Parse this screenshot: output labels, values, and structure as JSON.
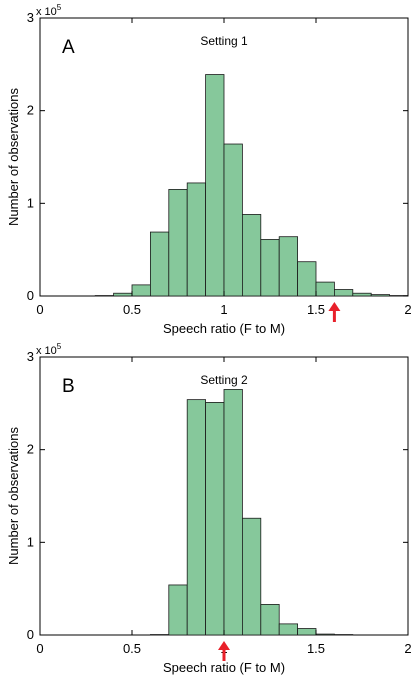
{
  "colors": {
    "bar_fill": "#86c89b",
    "bar_stroke": "#1a1a1a",
    "arrow": "#e8202a",
    "axis": "#000000"
  },
  "chart_data": [
    {
      "type": "bar",
      "panel_label": "A",
      "title": "Setting 1",
      "xlabel": "Speech ratio (F to M)",
      "ylabel": "Number of observations",
      "y_multiplier": "x 10",
      "y_multiplier_exp": "5",
      "xlim": [
        0,
        2
      ],
      "ylim": [
        0,
        3
      ],
      "x_ticks": [
        "0",
        "0.5",
        "1",
        "1.5",
        "2"
      ],
      "y_ticks": [
        "0",
        "1",
        "2",
        "3"
      ],
      "bin_width": 0.1,
      "bin_starts": [
        0.0,
        0.1,
        0.2,
        0.3,
        0.4,
        0.5,
        0.6,
        0.7,
        0.8,
        0.9,
        1.0,
        1.1,
        1.2,
        1.3,
        1.4,
        1.5,
        1.6,
        1.7,
        1.8,
        1.9
      ],
      "values": [
        0.0,
        0.0,
        0.0,
        0.005,
        0.03,
        0.12,
        0.69,
        1.15,
        1.22,
        2.39,
        1.64,
        0.88,
        0.61,
        0.64,
        0.37,
        0.15,
        0.07,
        0.03,
        0.015,
        0.005
      ],
      "arrow_x": 1.6
    },
    {
      "type": "bar",
      "panel_label": "B",
      "title": "Setting 2",
      "xlabel": "Speech ratio (F to M)",
      "ylabel": "Number of observations",
      "y_multiplier": "x 10",
      "y_multiplier_exp": "5",
      "xlim": [
        0,
        2
      ],
      "ylim": [
        0,
        3
      ],
      "x_ticks": [
        "0",
        "0.5",
        "1",
        "1.5",
        "2"
      ],
      "y_ticks": [
        "0",
        "1",
        "2",
        "3"
      ],
      "bin_width": 0.1,
      "bin_starts": [
        0.0,
        0.1,
        0.2,
        0.3,
        0.4,
        0.5,
        0.6,
        0.7,
        0.8,
        0.9,
        1.0,
        1.1,
        1.2,
        1.3,
        1.4,
        1.5,
        1.6,
        1.7,
        1.8,
        1.9
      ],
      "values": [
        0.0,
        0.0,
        0.0,
        0.0,
        0.0,
        0.0,
        0.005,
        0.54,
        2.54,
        2.51,
        2.65,
        1.26,
        0.33,
        0.12,
        0.07,
        0.01,
        0.005,
        0.0,
        0.0,
        0.0
      ],
      "arrow_x": 1.0
    }
  ]
}
